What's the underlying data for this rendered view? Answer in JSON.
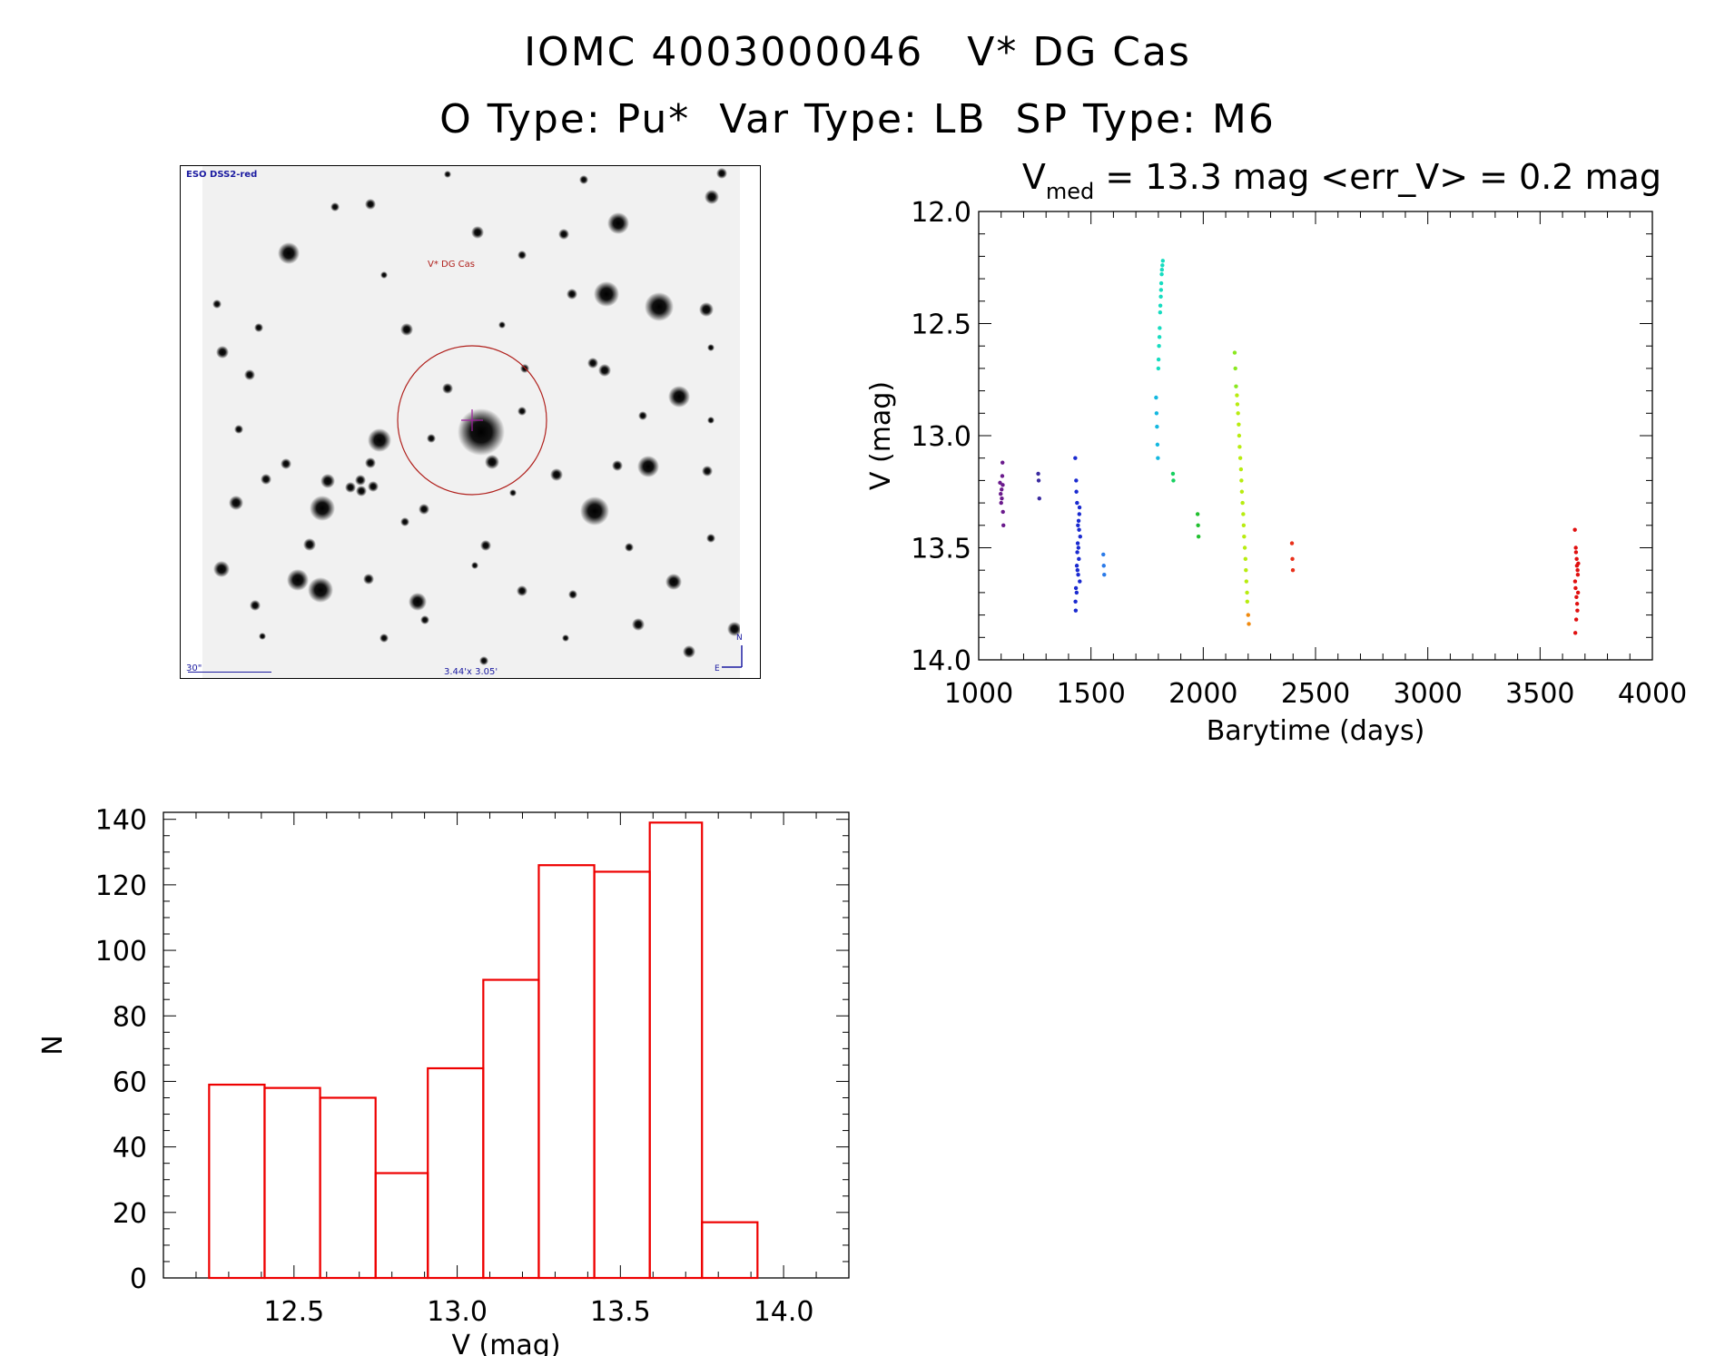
{
  "titles": {
    "line1": "IOMC 4003000046   V* DG Cas",
    "line2": "O Type: Pu*  Var Type: LB  SP Type: M6"
  },
  "finder_chart": {
    "survey_label": "ESO DSS2-red",
    "target_label": "V* DG Cas",
    "scale_label": "30\"",
    "size_label": "3.44'x 3.05'"
  },
  "chart_data": [
    {
      "type": "scatter",
      "title_main": "V",
      "title_sub": "med",
      "title_rest": " = 13.3 mag <err_V> = 0.2 mag",
      "xlabel": "Barytime (days)",
      "ylabel": "V (mag)",
      "xlim": [
        1000,
        4000
      ],
      "ylim": [
        14.0,
        12.0
      ],
      "y_inverted": true,
      "x_ticks": [
        "1000",
        "1500",
        "2000",
        "2500",
        "3000",
        "3500",
        "4000"
      ],
      "y_ticks": [
        "12.0",
        "12.5",
        "13.0",
        "13.5",
        "14.0"
      ],
      "series": [
        {
          "color": "#6a1a8c",
          "points": [
            [
              1095,
              13.21
            ],
            [
              1098,
              13.26
            ],
            [
              1100,
              13.3
            ],
            [
              1102,
              13.24
            ],
            [
              1105,
              13.18
            ],
            [
              1106,
              13.12
            ],
            [
              1108,
              13.34
            ],
            [
              1110,
              13.4
            ],
            [
              1103,
              13.28
            ],
            [
              1107,
              13.22
            ]
          ]
        },
        {
          "color": "#3a2aa0",
          "points": [
            [
              1265,
              13.17
            ],
            [
              1267,
              13.2
            ],
            [
              1270,
              13.28
            ]
          ]
        },
        {
          "color": "#1a2ad0",
          "points": [
            [
              1430,
              13.1
            ],
            [
              1432,
              13.78
            ],
            [
              1434,
              13.2
            ],
            [
              1436,
              13.7
            ],
            [
              1438,
              13.3
            ],
            [
              1440,
              13.6
            ],
            [
              1442,
              13.4
            ],
            [
              1444,
              13.5
            ],
            [
              1446,
              13.55
            ],
            [
              1448,
              13.35
            ],
            [
              1450,
              13.65
            ],
            [
              1452,
              13.45
            ],
            [
              1435,
              13.25
            ],
            [
              1439,
              13.52
            ],
            [
              1443,
              13.62
            ],
            [
              1447,
              13.42
            ],
            [
              1437,
              13.58
            ],
            [
              1441,
              13.48
            ],
            [
              1445,
              13.38
            ],
            [
              1433,
              13.68
            ],
            [
              1449,
              13.32
            ],
            [
              1431,
              13.74
            ]
          ]
        },
        {
          "color": "#2a7ae8",
          "points": [
            [
              1555,
              13.53
            ],
            [
              1557,
              13.58
            ],
            [
              1559,
              13.62
            ]
          ]
        },
        {
          "color": "#14b8e0",
          "points": [
            [
              1790,
              12.83
            ],
            [
              1792,
              12.9
            ],
            [
              1794,
              12.96
            ],
            [
              1796,
              13.04
            ],
            [
              1798,
              13.1
            ]
          ]
        },
        {
          "color": "#16dcc0",
          "points": [
            [
              1800,
              12.7
            ],
            [
              1803,
              12.6
            ],
            [
              1806,
              12.52
            ],
            [
              1808,
              12.45
            ],
            [
              1811,
              12.38
            ],
            [
              1813,
              12.32
            ],
            [
              1815,
              12.28
            ],
            [
              1818,
              12.24
            ],
            [
              1820,
              12.22
            ],
            [
              1805,
              12.56
            ],
            [
              1809,
              12.42
            ],
            [
              1816,
              12.26
            ],
            [
              1801,
              12.66
            ],
            [
              1812,
              12.35
            ]
          ]
        },
        {
          "color": "#16d060",
          "points": [
            [
              1865,
              13.17
            ],
            [
              1867,
              13.2
            ]
          ]
        },
        {
          "color": "#22c030",
          "points": [
            [
              1975,
              13.35
            ],
            [
              1977,
              13.4
            ],
            [
              1979,
              13.45
            ]
          ]
        },
        {
          "color": "#8ae820",
          "points": [
            [
              2140,
              12.63
            ],
            [
              2143,
              12.7
            ],
            [
              2146,
              12.78
            ]
          ]
        },
        {
          "color": "#b8ec10",
          "points": [
            [
              2150,
              12.82
            ],
            [
              2155,
              12.9
            ],
            [
              2160,
              13.0
            ],
            [
              2165,
              13.1
            ],
            [
              2170,
              13.2
            ],
            [
              2175,
              13.3
            ],
            [
              2180,
              13.4
            ],
            [
              2185,
              13.5
            ],
            [
              2190,
              13.6
            ],
            [
              2195,
              13.7
            ],
            [
              2158,
              12.95
            ],
            [
              2168,
              13.15
            ],
            [
              2178,
              13.35
            ],
            [
              2188,
              13.55
            ],
            [
              2152,
              12.86
            ],
            [
              2162,
              13.05
            ],
            [
              2172,
              13.25
            ],
            [
              2182,
              13.45
            ],
            [
              2192,
              13.65
            ],
            [
              2196,
              13.74
            ]
          ]
        },
        {
          "color": "#f08a10",
          "points": [
            [
              2200,
              13.8
            ],
            [
              2203,
              13.84
            ]
          ]
        },
        {
          "color": "#e8301a",
          "points": [
            [
              2395,
              13.48
            ],
            [
              2397,
              13.55
            ],
            [
              2399,
              13.6
            ]
          ]
        },
        {
          "color": "#e01010",
          "points": [
            [
              3655,
              13.42
            ],
            [
              3657,
              13.88
            ],
            [
              3659,
              13.5
            ],
            [
              3661,
              13.82
            ],
            [
              3663,
              13.55
            ],
            [
              3665,
              13.75
            ],
            [
              3667,
              13.6
            ],
            [
              3669,
              13.7
            ],
            [
              3656,
              13.65
            ],
            [
              3660,
              13.52
            ],
            [
              3664,
              13.58
            ],
            [
              3668,
              13.62
            ],
            [
              3658,
              13.68
            ],
            [
              3662,
              13.72
            ],
            [
              3666,
              13.78
            ],
            [
              3670,
              13.57
            ]
          ]
        }
      ]
    },
    {
      "type": "bar",
      "subtype": "histogram",
      "xlabel": "V (mag)",
      "ylabel": "N",
      "xlim": [
        12.1,
        14.2
      ],
      "ylim": [
        0,
        140
      ],
      "x_ticks": [
        "12.5",
        "13.0",
        "13.5",
        "14.0"
      ],
      "y_ticks": [
        "0",
        "20",
        "40",
        "60",
        "80",
        "100",
        "120",
        "140"
      ],
      "bin_edges": [
        12.24,
        12.41,
        12.58,
        12.75,
        12.91,
        13.08,
        13.25,
        13.42,
        13.59,
        13.75,
        13.92
      ],
      "values": [
        59,
        58,
        55,
        32,
        64,
        91,
        126,
        124,
        139,
        17
      ],
      "color": "#ee0000"
    }
  ]
}
